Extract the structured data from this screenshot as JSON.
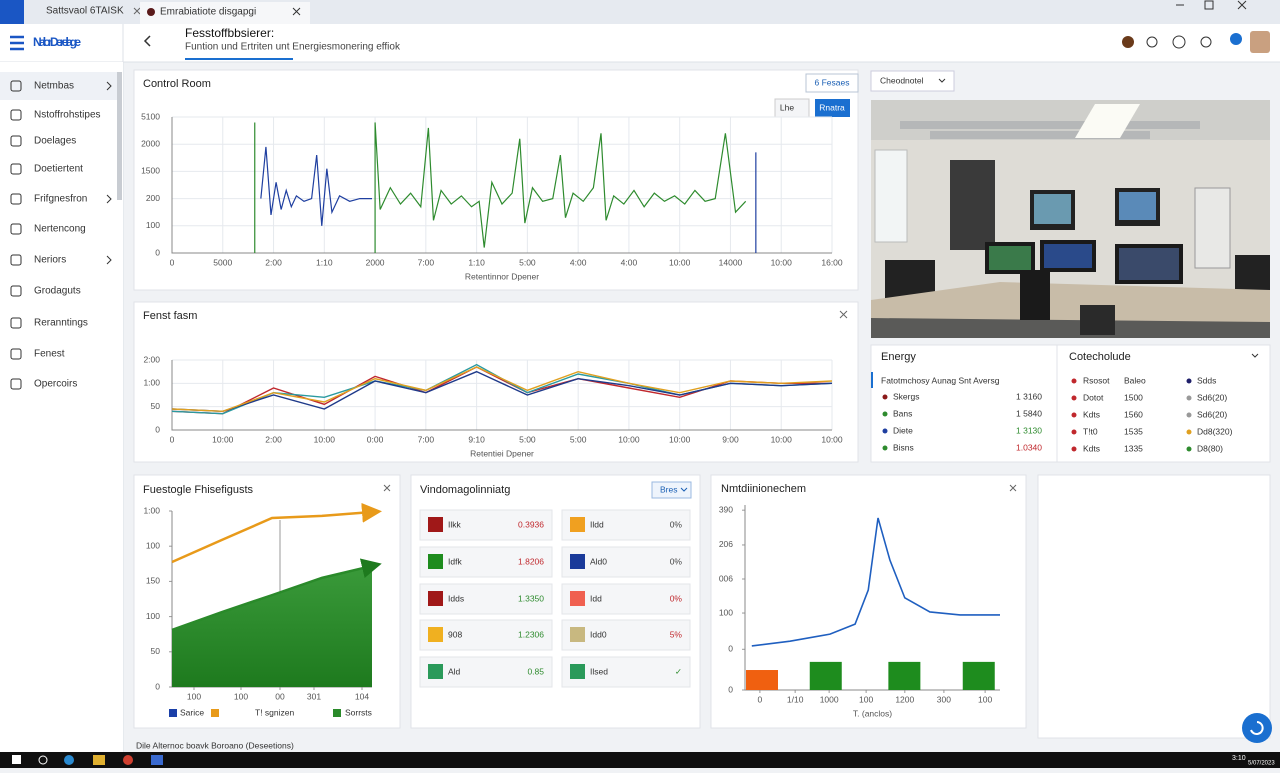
{
  "browser": {
    "tabs": [
      "Sattsvaol 6TAISK",
      "Emrabiatiote disgapgi"
    ]
  },
  "header": {
    "logo": "Nalor Derelage",
    "title": "Fesstoffbbsierer:",
    "subtitle": "Funtion und Ertriten unt Energiesmonering effiok"
  },
  "sidebar": [
    "Netmbas",
    "Nstoffrohstipes",
    "Doelages",
    "Doetiertent",
    "Frifgnesfron",
    "Nertencong",
    "Neriors",
    "Grodaguts",
    "Reranntings",
    "Fenest",
    "Opercoirs"
  ],
  "control_room": {
    "title": "Control Room",
    "buttons": [
      "6 Fesaes",
      "Lhe",
      "Rnatra"
    ],
    "chart": {
      "type": "line",
      "xlabel": "Retentinnor Dpener",
      "grid": true,
      "xlim": [
        0,
        13
      ],
      "ylim": [
        0,
        5
      ],
      "xticks": [
        0,
        {
          "value": 1,
          "label": "5000"
        },
        {
          "value": 2,
          "label": "2:00"
        },
        {
          "value": 3,
          "label": "1:10"
        },
        {
          "value": 4,
          "label": "2000"
        },
        {
          "value": 5,
          "label": "7:00"
        },
        {
          "value": 6,
          "label": "1:10"
        },
        {
          "value": 7,
          "label": "5:00"
        },
        {
          "value": 8,
          "label": "4:00"
        },
        {
          "value": 9,
          "label": "4:00"
        },
        {
          "value": 10,
          "label": "10:00"
        },
        {
          "value": 11,
          "label": "14000"
        },
        {
          "value": 12,
          "label": "10:00"
        },
        {
          "value": 13,
          "label": "16:00"
        }
      ],
      "yticks": [
        0,
        {
          "value": 1,
          "label": "100"
        },
        {
          "value": 2,
          "label": "200"
        },
        {
          "value": 3,
          "label": "1500"
        },
        {
          "value": 4,
          "label": "2000"
        },
        {
          "value": 5,
          "label": "5100"
        }
      ],
      "series": [
        {
          "color": "#2e8b2e",
          "x": [
            1.63,
            1.63
          ],
          "values": [
            0,
            4.8
          ]
        },
        {
          "color": "#1f3fa0",
          "x": [
            1.75,
            1.85,
            1.95,
            2.05,
            2.15,
            2.25,
            2.35,
            2.45,
            2.6,
            2.75,
            2.85,
            2.95,
            3.05,
            3.15,
            3.3,
            3.5,
            3.7,
            3.94
          ],
          "values": [
            2,
            3.9,
            1.4,
            2.6,
            1.6,
            2.3,
            1.7,
            2.1,
            1.9,
            2.0,
            3.6,
            1.0,
            3.1,
            1.5,
            2.1,
            1.9,
            2.0,
            2.0
          ]
        },
        {
          "color": "#2e8b2e",
          "x": [
            4.0,
            4.0,
            4.1,
            4.3,
            4.5,
            4.7,
            4.9,
            5.05,
            5.15,
            5.3,
            5.5,
            5.7,
            5.9,
            6.05,
            6.15,
            6.3,
            6.5,
            6.7,
            6.85,
            6.95,
            7.1,
            7.3,
            7.5,
            7.65,
            7.75,
            7.9,
            8.1,
            8.3,
            8.45,
            8.55,
            8.7,
            8.9,
            9.1,
            9.3,
            9.5,
            9.7,
            9.9,
            10.1,
            10.3,
            10.5,
            10.7,
            10.9,
            11.1,
            11.3
          ],
          "values": [
            0,
            4.8,
            1.6,
            2.4,
            1.8,
            2.2,
            1.7,
            4.6,
            1.2,
            2.3,
            1.8,
            2.1,
            1.7,
            1.9,
            0.2,
            2.6,
            1.8,
            2.2,
            4.2,
            1.1,
            2.4,
            1.9,
            2.0,
            3.6,
            1.3,
            2.2,
            1.9,
            2.4,
            4.4,
            1.2,
            2.1,
            1.8,
            2.3,
            1.7,
            2.2,
            1.9,
            2.1,
            1.8,
            2.3,
            1.9,
            2.0,
            4.4,
            1.5,
            1.9
          ]
        },
        {
          "color": "#1f3fa0",
          "x": [
            11.5,
            11.5
          ],
          "values": [
            0,
            3.7
          ]
        }
      ]
    }
  },
  "trend": {
    "title": "Fenst fasm",
    "chart": {
      "type": "line",
      "xlabel": "Retentiei Dpener",
      "grid": true,
      "xlim": [
        0,
        13
      ],
      "ylim": [
        0,
        3
      ],
      "xticks": [
        0,
        {
          "value": 1,
          "label": "10:00"
        },
        {
          "value": 2,
          "label": "2:00"
        },
        {
          "value": 3,
          "label": "10:00"
        },
        {
          "value": 4,
          "label": "0:00"
        },
        {
          "value": 5,
          "label": "7:00"
        },
        {
          "value": 6,
          "label": "9:10"
        },
        {
          "value": 7,
          "label": "5:00"
        },
        {
          "value": 8,
          "label": "5:00"
        },
        {
          "value": 9,
          "label": "10:00"
        },
        {
          "value": 10,
          "label": "10:00"
        },
        {
          "value": 11,
          "label": "9:00"
        },
        {
          "value": 12,
          "label": "10:00"
        },
        {
          "value": 13,
          "label": "10:00"
        }
      ],
      "yticks": [
        0,
        {
          "value": 1,
          "label": "50"
        },
        {
          "value": 2,
          "label": "1:00"
        },
        {
          "value": 3,
          "label": "2:00"
        }
      ],
      "series": [
        {
          "color": "#c0282d",
          "x": [
            0,
            1,
            2,
            3,
            4,
            5,
            6,
            7,
            8,
            9,
            10,
            11,
            12,
            13
          ],
          "values": [
            0.8,
            0.7,
            1.8,
            1.1,
            2.3,
            1.6,
            2.7,
            1.6,
            2.2,
            1.8,
            1.4,
            2.1,
            2.0,
            2.0
          ]
        },
        {
          "color": "#2a9aa0",
          "x": [
            0,
            1,
            2,
            3,
            4,
            5,
            6,
            7,
            8,
            9,
            10,
            11,
            12,
            13
          ],
          "values": [
            0.8,
            0.7,
            1.6,
            1.4,
            2.1,
            1.7,
            2.8,
            1.6,
            2.4,
            2.0,
            1.5,
            2.0,
            1.9,
            2.0
          ]
        },
        {
          "color": "#1f3a8a",
          "x": [
            0,
            1,
            2,
            3,
            4,
            5,
            6,
            7,
            8,
            9,
            10,
            11,
            12,
            13
          ],
          "values": [
            0.9,
            0.8,
            1.5,
            0.9,
            2.1,
            1.6,
            2.5,
            1.5,
            2.2,
            1.9,
            1.5,
            2.0,
            1.9,
            2.0
          ]
        },
        {
          "color": "#e0a020",
          "x": [
            0,
            1,
            2,
            3,
            4,
            5,
            6,
            7,
            8,
            9,
            10,
            11,
            12,
            13
          ],
          "values": [
            0.9,
            0.8,
            1.6,
            1.2,
            2.2,
            1.7,
            2.7,
            1.7,
            2.5,
            2.0,
            1.6,
            2.1,
            2.0,
            2.1
          ]
        }
      ]
    }
  },
  "camera": {
    "dropdown": "Cheodnotel"
  },
  "energy": {
    "title": "Energy",
    "header": "Fatotmchosy Aunag Snt Aversg",
    "rows": [
      {
        "color": "#8b1a1a",
        "name": "Skergs",
        "value": "1 3160",
        "value_color": "#333"
      },
      {
        "color": "#2e8b2e",
        "name": "Bans",
        "value": "1 5840",
        "value_color": "#333"
      },
      {
        "color": "#1f3fa0",
        "name": "Diete",
        "value": "1 3130",
        "value_color": "#2e8b2e"
      },
      {
        "color": "#2e8b2e",
        "name": "Bisns",
        "value": "1.0340",
        "value_color": "#c0282d"
      }
    ],
    "title2": "Cotecholude",
    "rows2": [
      {
        "color": "#c0282d",
        "a": "Rsosot",
        "b": "Baleo",
        "color2": "#1f1f6a",
        "c": "Sdds"
      },
      {
        "color": "#c0282d",
        "a": "Dotot",
        "b": "1500",
        "color2": "#999",
        "c": "Sd6(20)"
      },
      {
        "color": "#c0282d",
        "a": "Kdts",
        "b": "1560",
        "color2": "#999",
        "c": "Sd6(20)"
      },
      {
        "color": "#c0282d",
        "a": "T!t0",
        "b": "1535",
        "color2": "#e0a020",
        "c": "Dd8(320)"
      },
      {
        "color": "#c0282d",
        "a": "Kdts",
        "b": "1335",
        "color2": "#2e8b2e",
        "c": "D8(80)"
      }
    ]
  },
  "growth": {
    "title": "Fuestogle Fhisefigusts",
    "chart": {
      "type": "area",
      "xlim": [
        0,
        4
      ],
      "ylim": [
        0,
        5
      ],
      "xticks": [
        {
          "value": 0.44,
          "label": "100"
        },
        {
          "value": 1.38,
          "label": "100"
        },
        {
          "value": 2.16,
          "label": "00"
        },
        {
          "value": 2.84,
          "label": "301"
        },
        {
          "value": 3.8,
          "label": "104"
        }
      ],
      "yticks": [
        0,
        {
          "value": 1,
          "label": "50"
        },
        {
          "value": 2,
          "label": "100"
        },
        {
          "value": 3,
          "label": "150"
        },
        {
          "value": 4,
          "label": "100"
        },
        {
          "value": 5,
          "label": "1:00"
        }
      ],
      "series": [
        {
          "name": "T! sgnizen",
          "type": "line",
          "color": "#e89a1a",
          "x": [
            0,
            1,
            2,
            3,
            4
          ],
          "values": [
            3.55,
            4.18,
            4.8,
            4.86,
            4.97
          ]
        },
        {
          "name": "Sorrsts",
          "type": "area",
          "color": "#2a8a2a",
          "x": [
            0,
            1,
            2,
            3,
            4
          ],
          "values": [
            1.62,
            2.13,
            2.61,
            3.1,
            3.44
          ]
        }
      ],
      "legend_extra": {
        "name": "Sarice",
        "color": "#1a3fa8"
      }
    }
  },
  "materials": {
    "title": "Vindomagolinniatg",
    "dropdown": "Bres",
    "left": [
      {
        "color": "#a01818",
        "label": "Ilkk",
        "value": "0.3936",
        "value_color": "#c0282d"
      },
      {
        "color": "#1e8c1e",
        "label": "Idfk",
        "value": "1.8206",
        "value_color": "#c0282d"
      },
      {
        "color": "#a01818",
        "label": "Idds",
        "value": "1.3350",
        "value_color": "#2e8b2e"
      },
      {
        "color": "#f0b020",
        "label": "908",
        "value": "1.2306",
        "value_color": "#2e8b2e"
      },
      {
        "color": "#2a9a5a",
        "label": "Ald",
        "value": "0.85",
        "value_color": "#2e8b2e"
      }
    ],
    "right": [
      {
        "color": "#f0a020",
        "label": "Ildd",
        "value": "0%",
        "value_color": "#444"
      },
      {
        "color": "#1a3a9a",
        "label": "Ald0",
        "value": "0%",
        "value_color": "#444"
      },
      {
        "color": "#f06050",
        "label": "Idd",
        "value": "0%",
        "value_color": "#c0282d"
      },
      {
        "color": "#c8b880",
        "label": "Idd0",
        "value": "5%",
        "value_color": "#c0282d"
      },
      {
        "color": "#2a9a5a",
        "label": "Ilsed",
        "value": "✓",
        "value_color": "#2e8b2e"
      }
    ]
  },
  "peak": {
    "title": "Nmtdiinionechem",
    "chart": {
      "type": "line",
      "xlabel": "T. (anclos)",
      "xlim": [
        0,
        6
      ],
      "ylim": [
        0,
        5
      ],
      "xticks": [
        {
          "value": 0.35,
          "label": "0"
        },
        {
          "value": 1.18,
          "label": "1/10"
        },
        {
          "value": 1.98,
          "label": "1000"
        },
        {
          "value": 2.85,
          "label": "100"
        },
        {
          "value": 3.76,
          "label": "1200"
        },
        {
          "value": 4.68,
          "label": "300"
        },
        {
          "value": 5.65,
          "label": "100"
        }
      ],
      "yticks": [
        0,
        {
          "value": 1.1,
          "label": "0"
        },
        {
          "value": 2.08,
          "label": "100"
        },
        {
          "value": 3.0,
          "label": "006"
        },
        {
          "value": 3.92,
          "label": "206"
        },
        {
          "value": 4.86,
          "label": "390"
        }
      ],
      "series": [
        {
          "type": "line",
          "color": "#1f5fc0",
          "x": [
            0.16,
            1.06,
            2.0,
            2.59,
            2.9,
            3.13,
            3.41,
            3.76,
            4.35,
            5.06,
            6.0
          ],
          "values": [
            1.19,
            1.32,
            1.51,
            1.78,
            2.7,
            4.65,
            3.51,
            2.49,
            2.11,
            2.03,
            2.03
          ]
        },
        {
          "type": "bar",
          "color": "#f06010",
          "x": [
            0.4
          ],
          "values": [
            0.54
          ]
        },
        {
          "type": "bar",
          "color": "#1e8c1e",
          "x": [
            1.9,
            3.75,
            5.5
          ],
          "values": [
            0.76,
            0.76,
            0.76
          ]
        }
      ]
    }
  },
  "footer": "Dile Alternoc boavk Boroano (Deseetions)",
  "taskbar": {
    "time": "3:10",
    "date": "5/07/2023"
  }
}
